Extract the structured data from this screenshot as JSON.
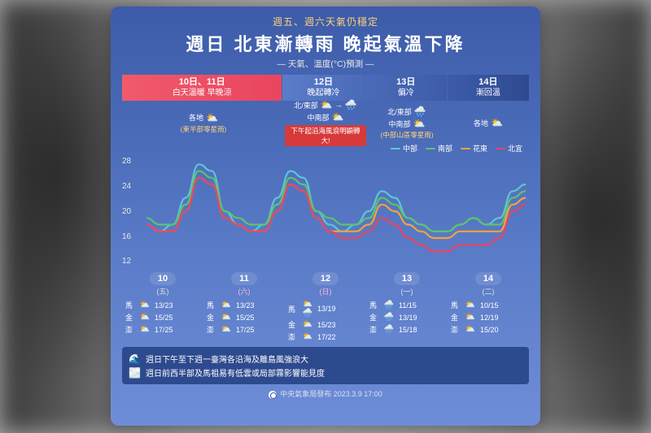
{
  "topline": "週五、週六天氣仍穩定",
  "title": "週日 北東漸轉雨 晚起氣溫下降",
  "subtitle": "— 天氣、溫度(°C)預測 —",
  "tabs": [
    {
      "d": "10日、11日",
      "s": "白天溫暖 早晚涼"
    },
    {
      "d": "12日",
      "s": "晚起轉冷"
    },
    {
      "d": "13日",
      "s": "偏冷"
    },
    {
      "d": "14日",
      "s": "漸回溫"
    }
  ],
  "tab_styles": {
    "t0": "tab0",
    "t1": "tab1",
    "t2": "tab2",
    "t3": "tab3"
  },
  "wx": [
    {
      "rows": [
        {
          "l": "各地",
          "ic": "⛅"
        }
      ],
      "note": "(東半部零星雨)"
    },
    {
      "rows": [
        {
          "l": "北/東部",
          "ic": "⛅",
          "arrow": "→",
          "ic2": "🌧️"
        },
        {
          "l": "中南部",
          "ic": "⛅"
        }
      ],
      "warn": "下午起沿海風浪明顯轉大!"
    },
    {
      "rows": [
        {
          "l": "北/東部",
          "ic": "🌧️"
        },
        {
          "l": "中南部",
          "ic": "⛅"
        }
      ],
      "note": "(中部山區零星雨)"
    },
    {
      "rows": [
        {
          "l": "各地",
          "ic": "⛅"
        }
      ]
    }
  ],
  "legend": [
    {
      "label": "中部",
      "color": "#5ec5d6"
    },
    {
      "label": "南部",
      "color": "#5cc46a"
    },
    {
      "label": "花東",
      "color": "#f5a23b"
    },
    {
      "label": "北宜",
      "color": "#e94560"
    }
  ],
  "chart": {
    "ymin": 12,
    "ymax": 28,
    "yticks": [
      28,
      24,
      20,
      16,
      12
    ],
    "colors": {
      "central": "#5ec5d6",
      "south": "#5cc46a",
      "east": "#f5a23b",
      "north": "#e94560"
    },
    "stroke_width": 2.2,
    "x_points": 30,
    "series": {
      "central": [
        18,
        17,
        18,
        22,
        27,
        26,
        20,
        18,
        17,
        18,
        22,
        26,
        25,
        20,
        18,
        17,
        18,
        20,
        23,
        22,
        19,
        18,
        17,
        17,
        18,
        19,
        18,
        19,
        23,
        24
      ],
      "south": [
        19,
        18,
        18,
        21,
        26,
        25,
        20,
        19,
        18,
        18,
        21,
        25,
        24,
        20,
        19,
        18,
        18,
        19,
        22,
        21,
        19,
        18,
        17,
        17,
        18,
        19,
        18,
        18,
        22,
        23
      ],
      "east": [
        18,
        17,
        17,
        20,
        25,
        24,
        19,
        18,
        17,
        17,
        20,
        24,
        23,
        19,
        17,
        17,
        17,
        18,
        21,
        20,
        18,
        17,
        16,
        16,
        17,
        17,
        17,
        17,
        21,
        22
      ],
      "north": [
        18,
        17,
        17,
        20,
        25,
        24,
        19,
        18,
        17,
        17,
        20,
        24,
        23,
        19,
        17,
        16,
        16,
        17,
        19,
        18,
        16,
        15,
        14,
        14,
        15,
        15,
        15,
        16,
        20,
        21
      ]
    }
  },
  "dates": [
    {
      "n": "10",
      "dow": "(五)",
      "cls": ""
    },
    {
      "n": "11",
      "dow": "(六)",
      "cls": "sat"
    },
    {
      "n": "12",
      "dow": "(日)",
      "cls": "sun"
    },
    {
      "n": "13",
      "dow": "(一)",
      "cls": ""
    },
    {
      "n": "14",
      "dow": "(二)",
      "cls": ""
    }
  ],
  "islands": [
    [
      {
        "nm": "馬",
        "ic": "⛅",
        "t": "13/23"
      },
      {
        "nm": "金",
        "ic": "⛅",
        "t": "15/25"
      },
      {
        "nm": "澎",
        "ic": "⛅",
        "t": "17/25"
      }
    ],
    [
      {
        "nm": "馬",
        "ic": "⛅🌧️",
        "t": "13/19"
      },
      {
        "nm": "金",
        "ic": "⛅",
        "t": "15/23"
      },
      {
        "nm": "澎",
        "ic": "⛅",
        "t": "17/22"
      }
    ],
    [
      {
        "nm": "馬",
        "ic": "🌧️",
        "t": "11/15"
      },
      {
        "nm": "金",
        "ic": "🌧️",
        "t": "13/19"
      },
      {
        "nm": "澎",
        "ic": "🌧️",
        "t": "15/18"
      }
    ],
    [
      {
        "nm": "馬",
        "ic": "⛅",
        "t": "10/15"
      },
      {
        "nm": "金",
        "ic": "⛅",
        "t": "12/19"
      },
      {
        "nm": "澎",
        "ic": "⛅",
        "t": "15/20"
      }
    ]
  ],
  "banners": [
    {
      "ic": "🌊",
      "t": "週日下午至下週一臺灣各沿海及離島風強浪大"
    },
    {
      "ic": "🌫️",
      "t": "週日前西半部及馬祖易有低雲或局部霧影響能見度"
    }
  ],
  "footer": {
    "org": "中央氣象局發布",
    "ts": "2023.3.9 17:00"
  }
}
